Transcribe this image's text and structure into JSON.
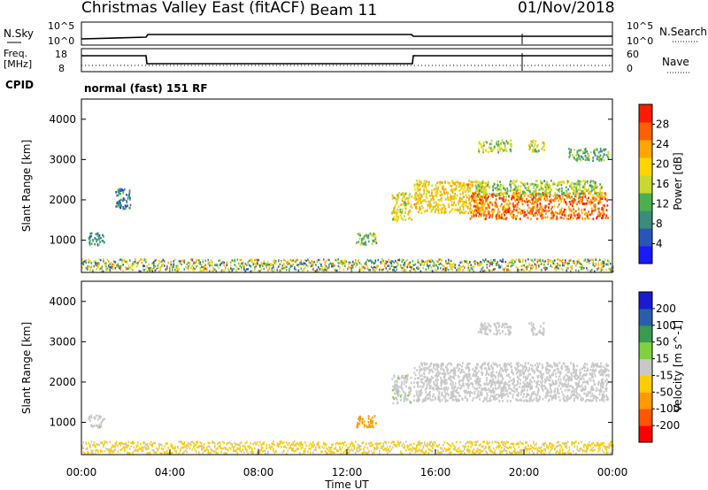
{
  "header": {
    "radar": "Christmas Valley East (fitACF)",
    "beam": "Beam 11",
    "date": "01/Nov/2018"
  },
  "noise_panel": {
    "left_label": "N.Sky",
    "left_ticks": [
      "10^5",
      "10^0"
    ],
    "right_ticks": [
      "10^5",
      "10^0"
    ],
    "right_label": "N.Search"
  },
  "freq_panel": {
    "left_label_1": "Freq.",
    "left_label_2": "[MHz]",
    "left_ticks": [
      "18",
      "8"
    ],
    "right_ticks": [
      "60",
      "0"
    ],
    "right_label": "Nave"
  },
  "cpid": {
    "label": "CPID",
    "mode": "normal (fast) 151 RF"
  },
  "colors": {
    "power": [
      "#1a1aff",
      "#2a55b8",
      "#3b8c7a",
      "#4caf50",
      "#c8d830",
      "#ffd400",
      "#ffa500",
      "#ff6000",
      "#ff1a00"
    ],
    "velocity": [
      "#ff0000",
      "#ff5500",
      "#ff9900",
      "#ffcc00",
      "#c8c8c8",
      "#80d040",
      "#3a9a50",
      "#2a5fa8",
      "#1a1ad0"
    ]
  },
  "chart_data": [
    {
      "type": "heatmap",
      "name": "power",
      "ylabel": "Slant Range [km]",
      "yticks": [
        "1000",
        "2000",
        "3000",
        "4000"
      ],
      "ylim": [
        200,
        4500
      ],
      "colorbar_label": "Power [dB]",
      "colorbar_ticks": [
        "4",
        "8",
        "12",
        "16",
        "20",
        "24",
        "28"
      ],
      "colorbar_range": [
        0,
        32
      ],
      "echo_regions": [
        {
          "t0": 0.3,
          "t1": 1.0,
          "r0": 900,
          "r1": 1200,
          "level": 10
        },
        {
          "t0": 1.5,
          "t1": 2.2,
          "r0": 1800,
          "r1": 2300,
          "level": 8
        },
        {
          "t0": 12.4,
          "t1": 13.3,
          "r0": 900,
          "r1": 1200,
          "level": 14
        },
        {
          "t0": 14.0,
          "t1": 14.9,
          "r0": 1500,
          "r1": 2200,
          "level": 18
        },
        {
          "t0": 15.0,
          "t1": 18.4,
          "r0": 1700,
          "r1": 2500,
          "level": 20
        },
        {
          "t0": 17.5,
          "t1": 23.8,
          "r0": 1550,
          "r1": 2200,
          "level": 26
        },
        {
          "t0": 17.8,
          "t1": 23.5,
          "r0": 2100,
          "r1": 2500,
          "level": 15
        },
        {
          "t0": 17.9,
          "t1": 19.4,
          "r0": 3200,
          "r1": 3500,
          "level": 16
        },
        {
          "t0": 20.2,
          "t1": 20.9,
          "r0": 3200,
          "r1": 3500,
          "level": 18
        },
        {
          "t0": 22.0,
          "t1": 23.8,
          "r0": 3000,
          "r1": 3300,
          "level": 12
        }
      ]
    },
    {
      "type": "heatmap",
      "name": "velocity",
      "ylabel": "Slant Range [km]",
      "yticks": [
        "1000",
        "2000",
        "3000",
        "4000"
      ],
      "ylim": [
        200,
        4500
      ],
      "colorbar_label": "Velocity [m s^-1]",
      "colorbar_ticks": [
        "-200",
        "-100",
        "-50",
        "-15",
        "15",
        "50",
        "100",
        "200"
      ],
      "xlabel": "Time UT",
      "xticks": [
        "00:00",
        "04:00",
        "08:00",
        "12:00",
        "16:00",
        "20:00",
        "00:00"
      ],
      "xlim": [
        0,
        24
      ],
      "echo_regions": [
        {
          "t0": 0.3,
          "t1": 1.0,
          "r0": 900,
          "r1": 1200,
          "velocity": 5
        },
        {
          "t0": 12.4,
          "t1": 13.3,
          "r0": 900,
          "r1": 1200,
          "velocity": -60
        },
        {
          "t0": 14.0,
          "t1": 14.9,
          "r0": 1500,
          "r1": 2200,
          "velocity": 5
        },
        {
          "t0": 15.0,
          "t1": 23.8,
          "r0": 1550,
          "r1": 2500,
          "velocity": 0
        },
        {
          "t0": 17.9,
          "t1": 19.4,
          "r0": 3200,
          "r1": 3500,
          "velocity": 0
        },
        {
          "t0": 20.2,
          "t1": 20.9,
          "r0": 3200,
          "r1": 3500,
          "velocity": 0
        }
      ]
    }
  ]
}
